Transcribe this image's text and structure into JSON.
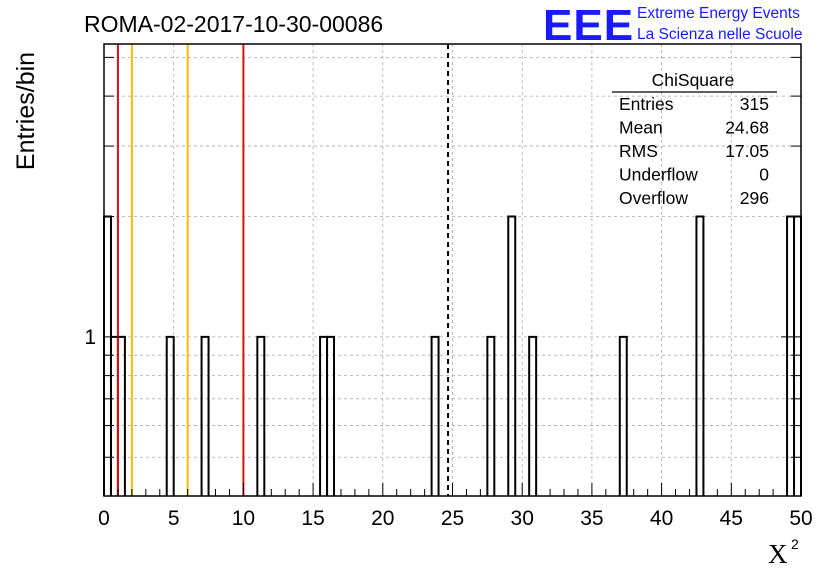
{
  "chart_data": {
    "type": "bar",
    "title": "ROMA-02-2017-10-30-00086",
    "xlabel": "X",
    "xlabel_superscript": "2",
    "ylabel": "Entries/bin",
    "xlim": [
      0,
      50
    ],
    "ylim": [
      0.4,
      5.4
    ],
    "log_y": true,
    "grid": true,
    "bin_width": 0.5,
    "x_ticks": [
      "0",
      "5",
      "10",
      "15",
      "20",
      "25",
      "30",
      "35",
      "40",
      "45",
      "50"
    ],
    "y_tick_labels": [
      {
        "value": 1,
        "label": "1"
      }
    ],
    "bins": [
      {
        "x": 0.0,
        "count": 2
      },
      {
        "x": 0.5,
        "count": 1
      },
      {
        "x": 1.0,
        "count": 1
      },
      {
        "x": 4.5,
        "count": 1
      },
      {
        "x": 7.0,
        "count": 1
      },
      {
        "x": 11.0,
        "count": 1
      },
      {
        "x": 15.5,
        "count": 1
      },
      {
        "x": 16.0,
        "count": 1
      },
      {
        "x": 23.5,
        "count": 1
      },
      {
        "x": 27.5,
        "count": 1
      },
      {
        "x": 29.0,
        "count": 2
      },
      {
        "x": 30.5,
        "count": 1
      },
      {
        "x": 37.0,
        "count": 1
      },
      {
        "x": 42.5,
        "count": 2
      },
      {
        "x": 49.0,
        "count": 2
      },
      {
        "x": 49.5,
        "count": 2
      }
    ],
    "vertical_lines": [
      {
        "x": 1,
        "color": "#dd1111",
        "style": "solid"
      },
      {
        "x": 2,
        "color": "#f0c000",
        "style": "solid"
      },
      {
        "x": 6,
        "color": "#f0c000",
        "style": "solid"
      },
      {
        "x": 10,
        "color": "#dd1111",
        "style": "solid"
      },
      {
        "x": 24.68,
        "color": "#000000",
        "style": "dashed"
      }
    ],
    "stats_box": {
      "title": "ChiSquare",
      "rows": [
        {
          "label": "Entries",
          "value": "315"
        },
        {
          "label": "Mean",
          "value": "24.68"
        },
        {
          "label": "RMS",
          "value": "17.05"
        },
        {
          "label": "Underflow",
          "value": "0"
        },
        {
          "label": "Overflow",
          "value": "296"
        }
      ]
    }
  },
  "logo": {
    "big": "EEE",
    "line1": "Extreme Energy Events",
    "line2": "La Scienza nelle Scuole",
    "color": "#1a1aff"
  }
}
